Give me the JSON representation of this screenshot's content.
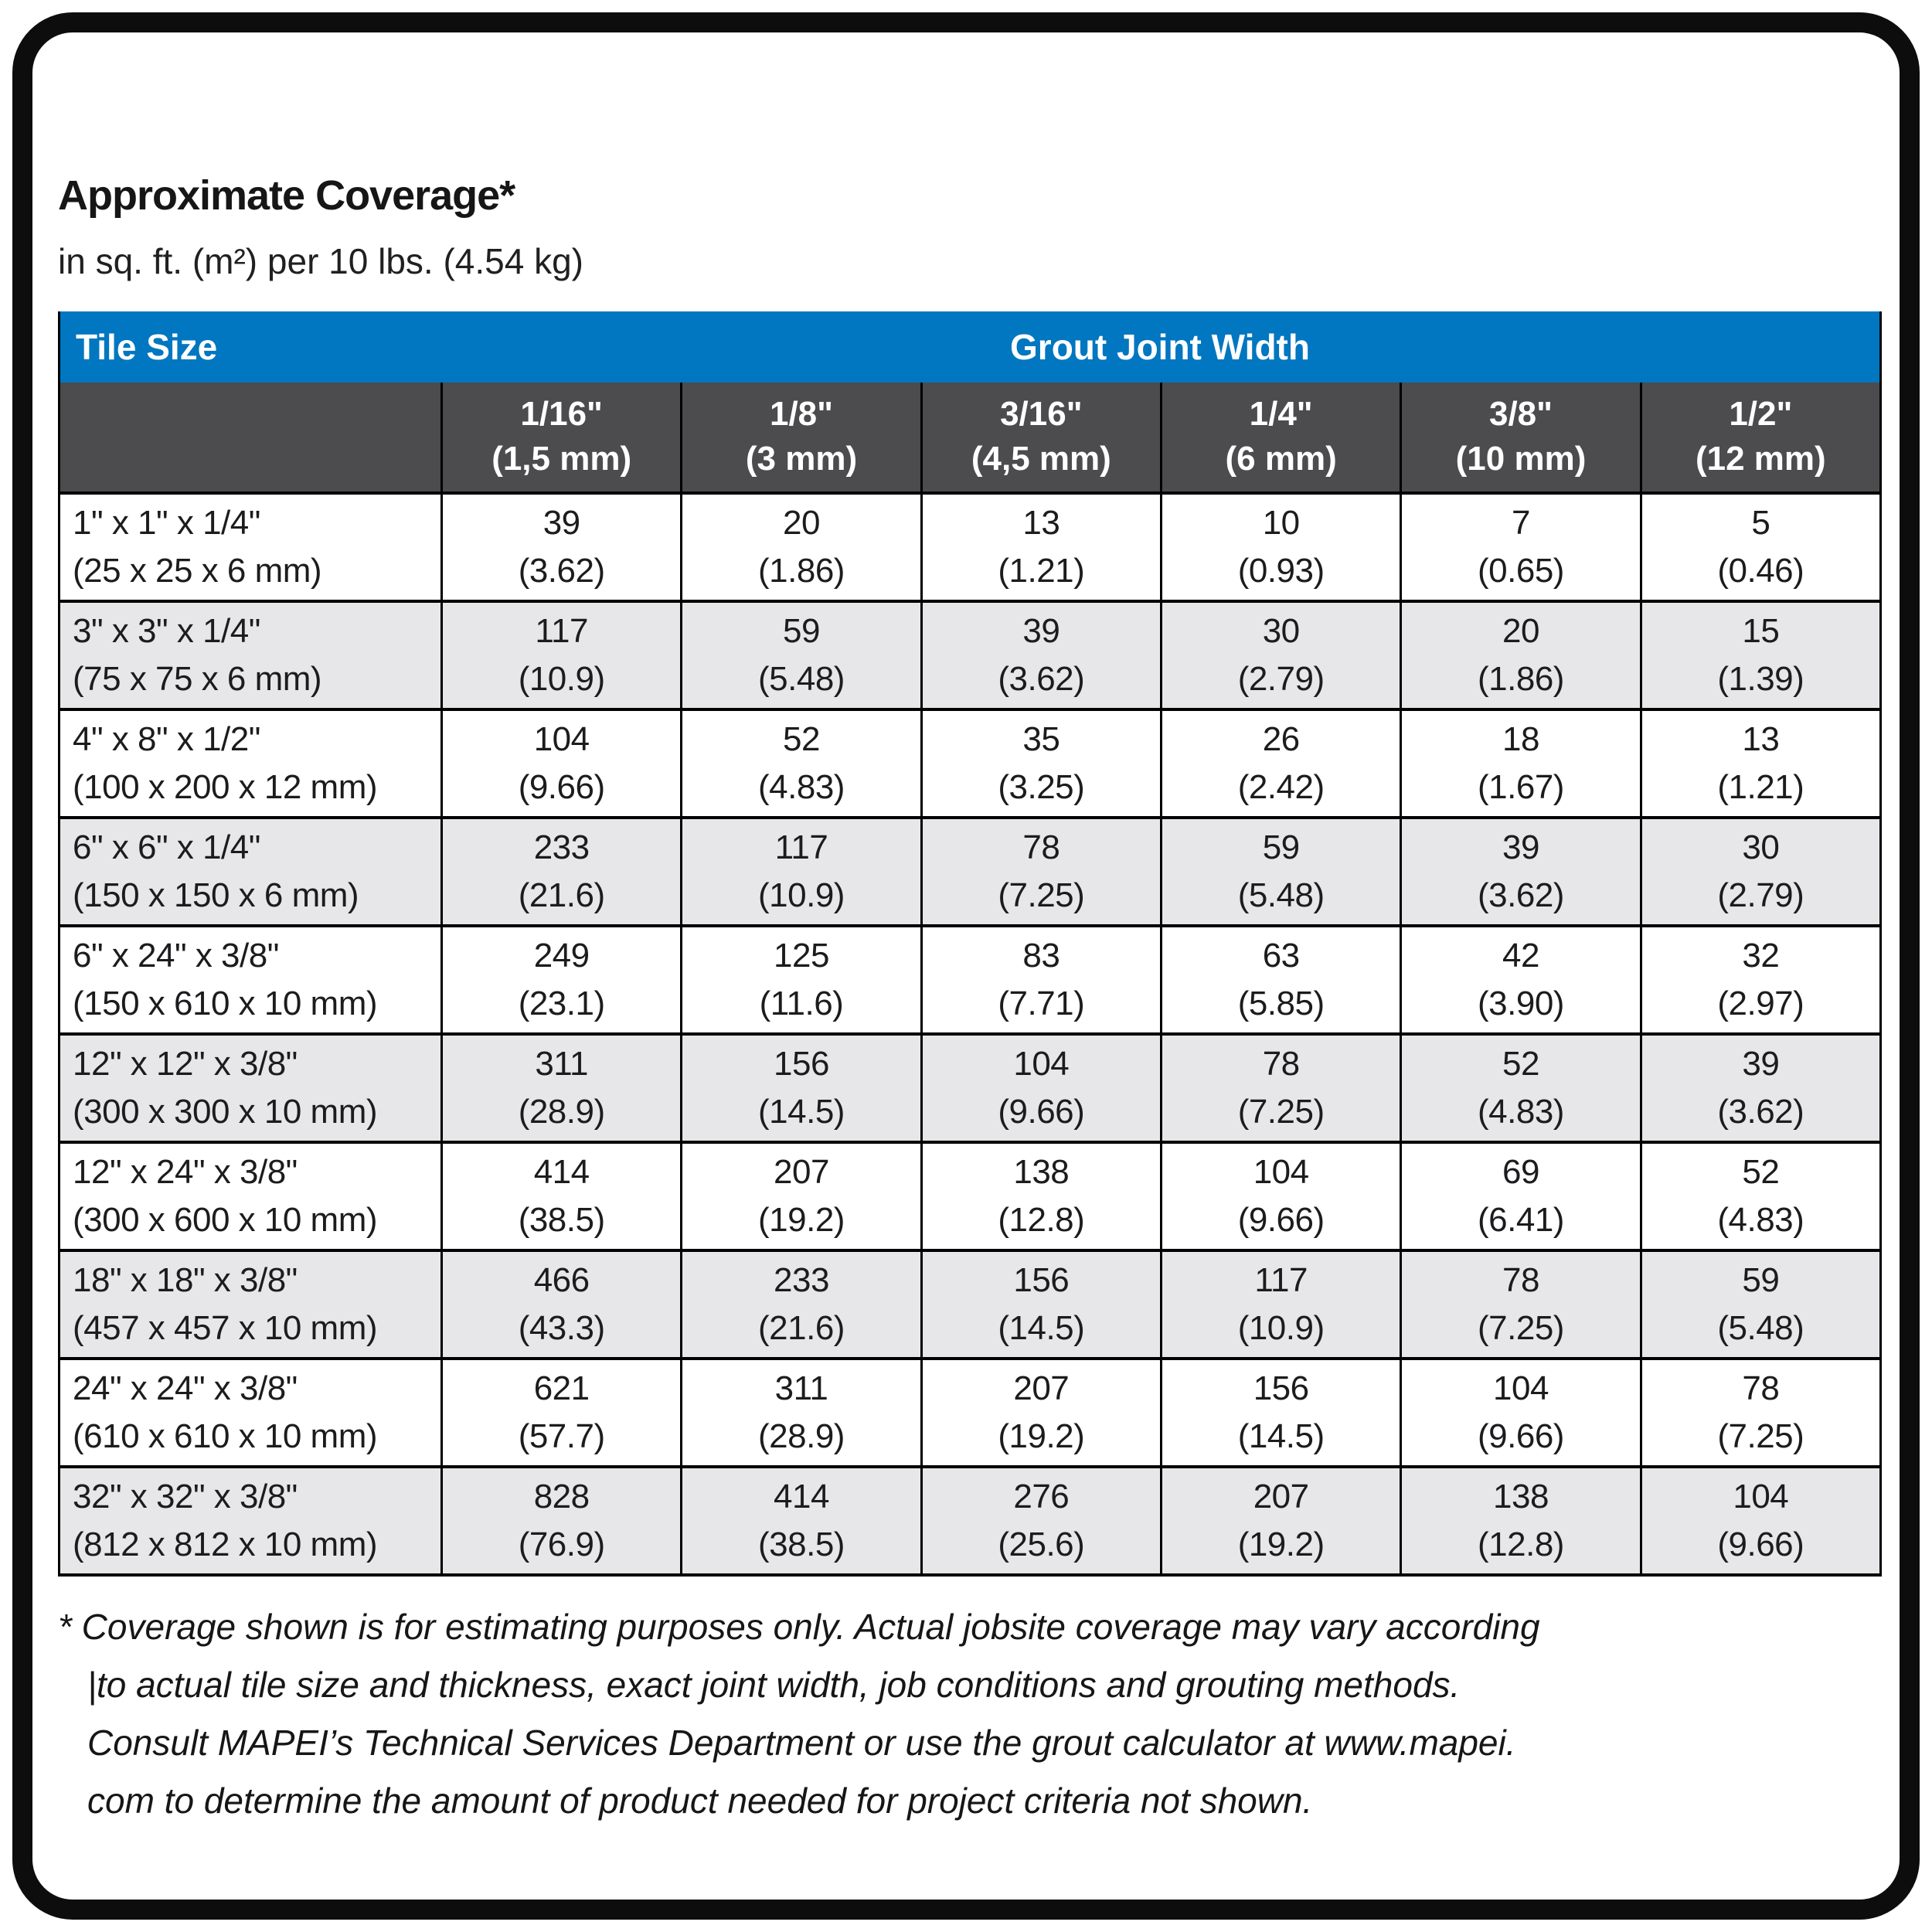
{
  "header": {
    "title": "Approximate Coverage*",
    "subtitle": "in sq. ft. (m²) per 10 lbs. (4.54 kg)"
  },
  "colors": {
    "header_blue": "#0077C0",
    "header_dark_gray": "#4C4C4E",
    "alt_row_gray": "#E7E7E9",
    "border_black": "#000000"
  },
  "table": {
    "corner_label": "Tile Size",
    "group_label": "Grout Joint Width",
    "columns": [
      {
        "size": "1/16\"",
        "metric": "(1,5 mm)"
      },
      {
        "size": "1/8\"",
        "metric": "(3 mm)"
      },
      {
        "size": "3/16\"",
        "metric": "(4,5 mm)"
      },
      {
        "size": "1/4\"",
        "metric": "(6 mm)"
      },
      {
        "size": "3/8\"",
        "metric": "(10 mm)"
      },
      {
        "size": "1/2\"",
        "metric": "(12 mm)"
      }
    ],
    "rows": [
      {
        "size": "1\" x 1\" x 1/4\"",
        "metric": "(25 x 25 x 6 mm)",
        "values": [
          {
            "v": "39",
            "m": "(3.62)"
          },
          {
            "v": "20",
            "m": "(1.86)"
          },
          {
            "v": "13",
            "m": "(1.21)"
          },
          {
            "v": "10",
            "m": "(0.93)"
          },
          {
            "v": "7",
            "m": "(0.65)"
          },
          {
            "v": "5",
            "m": "(0.46)"
          }
        ]
      },
      {
        "size": "3\" x 3\" x 1/4\"",
        "metric": "(75 x 75 x 6 mm)",
        "values": [
          {
            "v": "117",
            "m": "(10.9)"
          },
          {
            "v": "59",
            "m": "(5.48)"
          },
          {
            "v": "39",
            "m": "(3.62)"
          },
          {
            "v": "30",
            "m": "(2.79)"
          },
          {
            "v": "20",
            "m": "(1.86)"
          },
          {
            "v": "15",
            "m": "(1.39)"
          }
        ]
      },
      {
        "size": "4\" x 8\" x 1/2\"",
        "metric": "(100 x 200 x 12 mm)",
        "values": [
          {
            "v": "104",
            "m": "(9.66)"
          },
          {
            "v": "52",
            "m": "(4.83)"
          },
          {
            "v": "35",
            "m": "(3.25)"
          },
          {
            "v": "26",
            "m": "(2.42)"
          },
          {
            "v": "18",
            "m": "(1.67)"
          },
          {
            "v": "13",
            "m": "(1.21)"
          }
        ]
      },
      {
        "size": "6\" x 6\" x 1/4\"",
        "metric": "(150 x 150 x 6 mm)",
        "values": [
          {
            "v": "233",
            "m": "(21.6)"
          },
          {
            "v": "117",
            "m": "(10.9)"
          },
          {
            "v": "78",
            "m": "(7.25)"
          },
          {
            "v": "59",
            "m": "(5.48)"
          },
          {
            "v": "39",
            "m": "(3.62)"
          },
          {
            "v": "30",
            "m": "(2.79)"
          }
        ]
      },
      {
        "size": "6\" x 24\" x 3/8\"",
        "metric": "(150 x 610 x 10 mm)",
        "values": [
          {
            "v": "249",
            "m": "(23.1)"
          },
          {
            "v": "125",
            "m": "(11.6)"
          },
          {
            "v": "83",
            "m": "(7.71)"
          },
          {
            "v": "63",
            "m": "(5.85)"
          },
          {
            "v": "42",
            "m": "(3.90)"
          },
          {
            "v": "32",
            "m": "(2.97)"
          }
        ]
      },
      {
        "size": "12\" x 12\" x 3/8\"",
        "metric": "(300 x 300 x 10 mm)",
        "values": [
          {
            "v": "311",
            "m": "(28.9)"
          },
          {
            "v": "156",
            "m": "(14.5)"
          },
          {
            "v": "104",
            "m": "(9.66)"
          },
          {
            "v": "78",
            "m": "(7.25)"
          },
          {
            "v": "52",
            "m": "(4.83)"
          },
          {
            "v": "39",
            "m": "(3.62)"
          }
        ]
      },
      {
        "size": "12\" x 24\" x 3/8\"",
        "metric": "(300 x 600 x 10 mm)",
        "values": [
          {
            "v": "414",
            "m": "(38.5)"
          },
          {
            "v": "207",
            "m": "(19.2)"
          },
          {
            "v": "138",
            "m": "(12.8)"
          },
          {
            "v": "104",
            "m": "(9.66)"
          },
          {
            "v": "69",
            "m": "(6.41)"
          },
          {
            "v": "52",
            "m": "(4.83)"
          }
        ]
      },
      {
        "size": "18\" x 18\" x 3/8\"",
        "metric": "(457 x 457 x 10 mm)",
        "values": [
          {
            "v": "466",
            "m": "(43.3)"
          },
          {
            "v": "233",
            "m": "(21.6)"
          },
          {
            "v": "156",
            "m": "(14.5)"
          },
          {
            "v": "117",
            "m": "(10.9)"
          },
          {
            "v": "78",
            "m": "(7.25)"
          },
          {
            "v": "59",
            "m": "(5.48)"
          }
        ]
      },
      {
        "size": "24\" x 24\" x 3/8\"",
        "metric": "(610 x 610 x 10 mm)",
        "values": [
          {
            "v": "621",
            "m": "(57.7)"
          },
          {
            "v": "311",
            "m": "(28.9)"
          },
          {
            "v": "207",
            "m": "(19.2)"
          },
          {
            "v": "156",
            "m": "(14.5)"
          },
          {
            "v": "104",
            "m": "(9.66)"
          },
          {
            "v": "78",
            "m": "(7.25)"
          }
        ]
      },
      {
        "size": "32\" x 32\" x 3/8\"",
        "metric": "(812 x 812 x 10 mm)",
        "values": [
          {
            "v": "828",
            "m": "(76.9)"
          },
          {
            "v": "414",
            "m": "(38.5)"
          },
          {
            "v": "276",
            "m": "(25.6)"
          },
          {
            "v": "207",
            "m": "(19.2)"
          },
          {
            "v": "138",
            "m": "(12.8)"
          },
          {
            "v": "104",
            "m": "(9.66)"
          }
        ]
      }
    ]
  },
  "footnote": {
    "lines": [
      "* Coverage shown is for estimating purposes only. Actual jobsite coverage may vary according",
      "|to actual tile size and thickness, exact joint width, job conditions and grouting methods.",
      "Consult MAPEI’s Technical Services Department or use the grout calculator at www.mapei.",
      "com to determine the amount of product needed for project criteria not shown."
    ]
  }
}
